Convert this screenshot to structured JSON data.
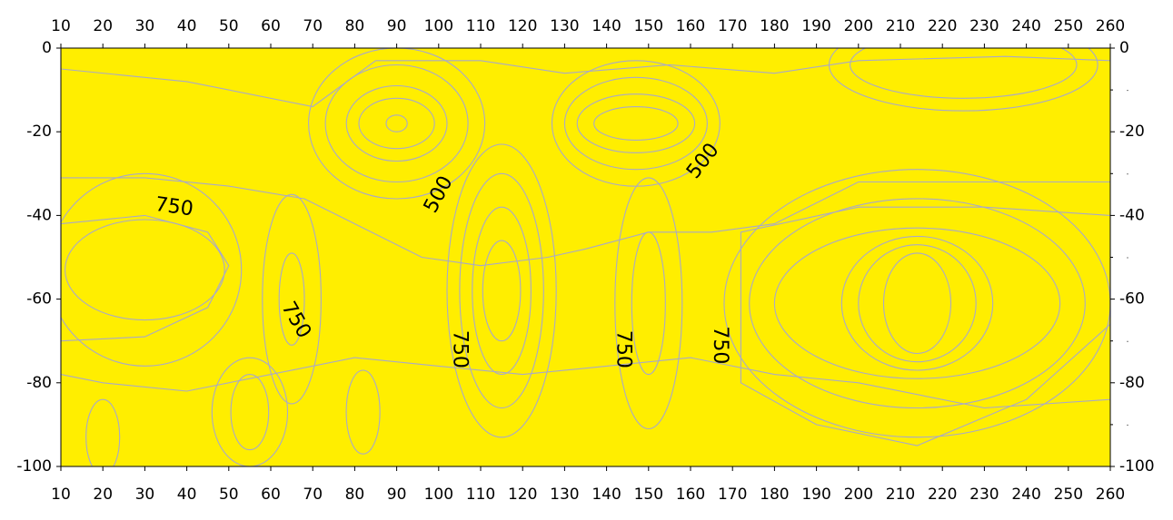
{
  "chart_data": {
    "type": "heatmap",
    "subtype": "filled-contour",
    "title": "",
    "xlabel": "",
    "ylabel": "",
    "xlim": [
      10,
      260
    ],
    "ylim": [
      -100,
      0
    ],
    "x_ticks": [
      10,
      20,
      30,
      40,
      50,
      60,
      70,
      80,
      90,
      100,
      110,
      120,
      130,
      140,
      150,
      160,
      170,
      180,
      190,
      200,
      210,
      220,
      230,
      240,
      250,
      260
    ],
    "y_ticks": [
      0,
      -20,
      -40,
      -60,
      -80,
      -100
    ],
    "x_tick_labels": [
      "10",
      "20",
      "30",
      "40",
      "50",
      "60",
      "70",
      "80",
      "90",
      "100",
      "110",
      "120",
      "130",
      "140",
      "150",
      "160",
      "170",
      "180",
      "190",
      "200",
      "210",
      "220",
      "230",
      "240",
      "250",
      "260"
    ],
    "y_tick_labels": [
      "0",
      "-20",
      "-40",
      "-60",
      "-80",
      "-100"
    ],
    "axes_labeled": [
      "top",
      "bottom",
      "left",
      "right"
    ],
    "grid": false,
    "colors": {
      "deep_blue": "#0000d8",
      "light_blue": "#00aaff",
      "cyan": "#00f0c8",
      "bright_green": "#00ee40",
      "green": "#66ee10",
      "yellow_green": "#b6f200",
      "lime_yellow": "#e6fa00",
      "yellow": "#ffee00",
      "gold": "#ffd000",
      "light_orange": "#ffb600",
      "orange": "#ff9e00",
      "dark_orange": "#ff7400",
      "red_orange": "#ff4a00",
      "red": "#ff2800",
      "contour_line": "#a9a9c8"
    },
    "contour_labels": [
      {
        "text": "750",
        "x": 37,
        "y": -38
      },
      {
        "text": "750",
        "x": 66,
        "y": -65
      },
      {
        "text": "500",
        "x": 100,
        "y": -35
      },
      {
        "text": "750",
        "x": 105,
        "y": -72
      },
      {
        "text": "750",
        "x": 144,
        "y": -72
      },
      {
        "text": "750",
        "x": 167,
        "y": -71
      },
      {
        "text": "500",
        "x": 163,
        "y": -27
      }
    ],
    "features": [
      {
        "kind": "low",
        "x": 90,
        "y": -18,
        "levels": [
          {
            "color": "green",
            "rx": 21,
            "ry": 18
          },
          {
            "color": "bright_green",
            "rx": 17,
            "ry": 14
          },
          {
            "color": "cyan",
            "rx": 12,
            "ry": 9
          },
          {
            "color": "light_blue",
            "rx": 9,
            "ry": 6
          },
          {
            "color": "deep_blue",
            "rx": 2.5,
            "ry": 2
          }
        ]
      },
      {
        "kind": "low",
        "x": 147,
        "y": -18,
        "levels": [
          {
            "color": "green",
            "rx": 20,
            "ry": 15
          },
          {
            "color": "bright_green",
            "rx": 17,
            "ry": 11
          },
          {
            "color": "cyan",
            "rx": 14,
            "ry": 7
          },
          {
            "color": "light_blue",
            "rx": 10,
            "ry": 4
          }
        ]
      },
      {
        "kind": "high",
        "x": 115,
        "y": -58,
        "levels": [
          {
            "color": "gold",
            "rx": 13,
            "ry": 35
          },
          {
            "color": "light_orange",
            "rx": 10,
            "ry": 28
          },
          {
            "color": "orange",
            "rx": 7,
            "ry": 20
          },
          {
            "color": "dark_orange",
            "rx": 4.5,
            "ry": 12
          }
        ]
      },
      {
        "kind": "high",
        "x": 150,
        "y": -61,
        "levels": [
          {
            "color": "gold",
            "rx": 8,
            "ry": 30
          },
          {
            "color": "light_orange",
            "rx": 4,
            "ry": 17
          }
        ]
      },
      {
        "kind": "high",
        "x": 65,
        "y": -60,
        "levels": [
          {
            "color": "gold",
            "rx": 7,
            "ry": 25
          },
          {
            "color": "light_orange",
            "rx": 3,
            "ry": 11
          }
        ]
      },
      {
        "kind": "high",
        "x": 30,
        "y": -53,
        "levels": [
          {
            "color": "gold",
            "rx": 23,
            "ry": 23
          },
          {
            "color": "light_orange",
            "rx": 19,
            "ry": 12
          }
        ]
      },
      {
        "kind": "high",
        "x": 214,
        "y": -61,
        "levels": [
          {
            "color": "gold",
            "rx": 46,
            "ry": 32
          },
          {
            "color": "light_orange",
            "rx": 40,
            "ry": 25
          },
          {
            "color": "orange",
            "rx": 34,
            "ry": 18
          },
          {
            "color": "dark_orange",
            "rx": 18,
            "ry": 16
          },
          {
            "color": "red_orange",
            "rx": 14,
            "ry": 14
          },
          {
            "color": "red",
            "rx": 8,
            "ry": 12
          }
        ]
      },
      {
        "kind": "low",
        "x": 55,
        "y": -87,
        "levels": [
          {
            "color": "lime_yellow",
            "rx": 9,
            "ry": 13
          },
          {
            "color": "yellow_green",
            "rx": 4.5,
            "ry": 9
          }
        ]
      },
      {
        "kind": "low",
        "x": 20,
        "y": -93,
        "levels": [
          {
            "color": "lime_yellow",
            "rx": 4,
            "ry": 9
          }
        ]
      },
      {
        "kind": "low",
        "x": 82,
        "y": -87,
        "levels": [
          {
            "color": "lime_yellow",
            "rx": 4,
            "ry": 10
          }
        ]
      },
      {
        "kind": "low",
        "x": 225,
        "y": -4,
        "levels": [
          {
            "color": "lime_yellow",
            "rx": 32,
            "ry": 11
          },
          {
            "color": "yellow_green",
            "rx": 27,
            "ry": 8
          }
        ]
      }
    ]
  }
}
